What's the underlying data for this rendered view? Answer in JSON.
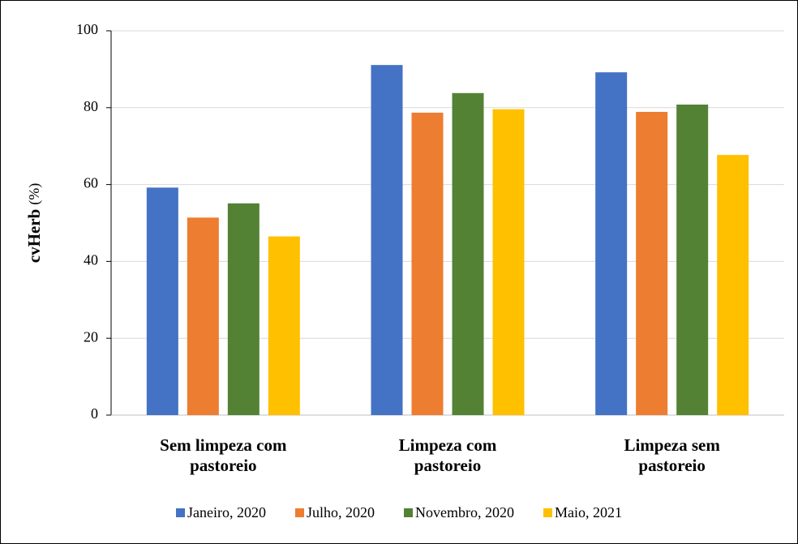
{
  "chart_data": {
    "type": "bar",
    "y_label": "cvHerb",
    "y_unit": "(%)",
    "categories": [
      "Sem limpeza com pastoreio",
      "Limpeza com pastoreio",
      "Limpeza sem pastoreio"
    ],
    "series": [
      {
        "name": "Janeiro, 2020",
        "color": "#4472c4",
        "values": [
          59.2,
          91.1,
          89.2
        ]
      },
      {
        "name": "Julho, 2020",
        "color": "#ed7d31",
        "values": [
          51.4,
          78.7,
          78.9
        ]
      },
      {
        "name": "Novembro, 2020",
        "color": "#548235",
        "values": [
          55.1,
          83.8,
          80.8
        ]
      },
      {
        "name": "Maio, 2021",
        "color": "#ffc000",
        "values": [
          46.5,
          79.6,
          67.7
        ]
      }
    ],
    "ylim": [
      0,
      100
    ],
    "yticks": [
      0,
      20,
      40,
      60,
      80,
      100
    ],
    "grid": true,
    "legend": "bottom"
  }
}
